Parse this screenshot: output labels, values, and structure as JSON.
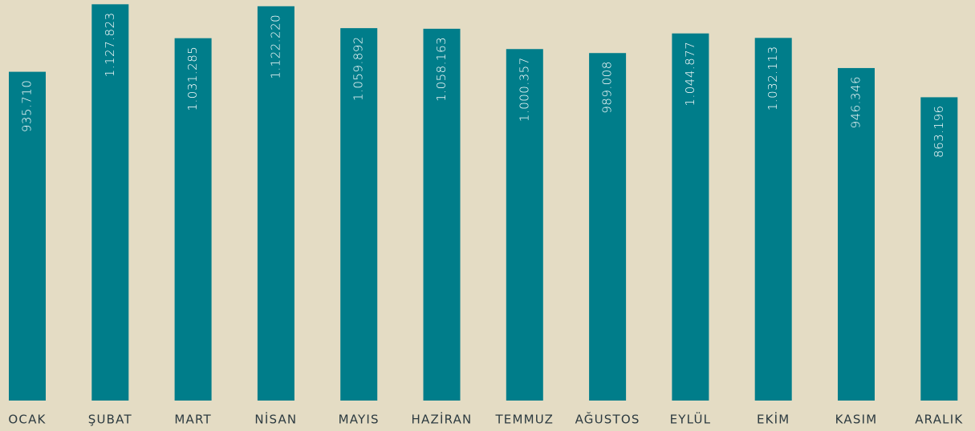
{
  "chart_data": {
    "type": "bar",
    "categories": [
      "OCAK",
      "ŞUBAT",
      "MART",
      "NİSAN",
      "MAYIS",
      "HAZİRAN",
      "TEMMUZ",
      "AĞUSTOS",
      "EYLÜL",
      "EKİM",
      "KASIM",
      "ARALIK"
    ],
    "values": [
      935710,
      1127823,
      1031285,
      1122220,
      1059892,
      1058163,
      1000357,
      989008,
      1044877,
      1032113,
      946346,
      863196
    ],
    "value_labels": [
      "935.710",
      "1.127.823",
      "1.031.285",
      "1.122.220",
      "1.059.892",
      "1.058.163",
      "1.000.357",
      "989.008",
      "1.044.877",
      "1.032.113",
      "946.346",
      "863.196"
    ],
    "color": "#007d8a",
    "ylim": [
      0,
      1140000
    ]
  }
}
